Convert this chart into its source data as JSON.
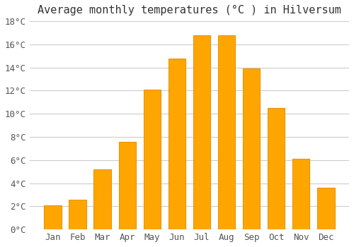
{
  "title": "Average monthly temperatures (°C ) in Hilversum",
  "months": [
    "Jan",
    "Feb",
    "Mar",
    "Apr",
    "May",
    "Jun",
    "Jul",
    "Aug",
    "Sep",
    "Oct",
    "Nov",
    "Dec"
  ],
  "values": [
    2.1,
    2.6,
    5.2,
    7.6,
    12.1,
    14.8,
    16.8,
    16.8,
    13.9,
    10.5,
    6.1,
    3.6
  ],
  "bar_color": "#FFA500",
  "bar_edge_color": "#E8940A",
  "background_color": "#FFFFFF",
  "grid_color": "#CCCCCC",
  "title_fontsize": 11,
  "tick_fontsize": 9,
  "ylim": [
    0,
    18
  ],
  "yticks": [
    0,
    2,
    4,
    6,
    8,
    10,
    12,
    14,
    16,
    18
  ]
}
